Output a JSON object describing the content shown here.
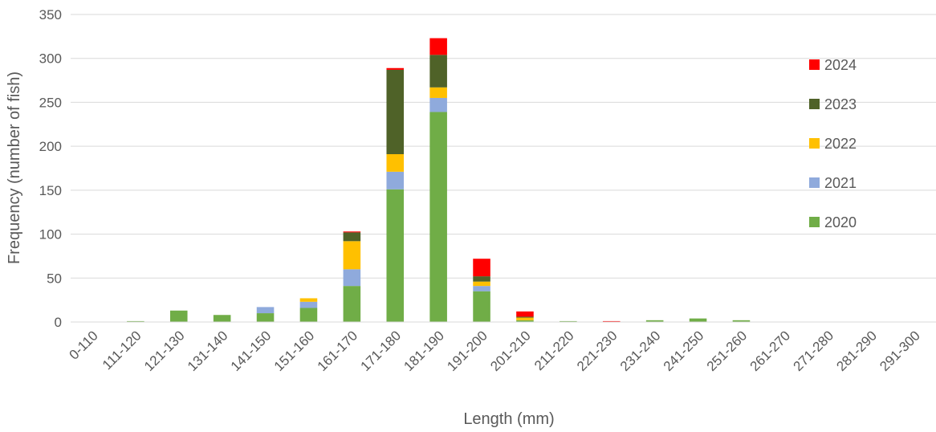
{
  "chart_data": {
    "type": "bar",
    "stacked": true,
    "title": "",
    "xlabel": "Length (mm)",
    "ylabel": "Frequency (number of fish)",
    "ylim": [
      0,
      350
    ],
    "yticks": [
      0,
      50,
      100,
      150,
      200,
      250,
      300,
      350
    ],
    "grid": true,
    "legend_position": "right",
    "categories": [
      "0-110",
      "111-120",
      "121-130",
      "131-140",
      "141-150",
      "151-160",
      "161-170",
      "171-180",
      "181-190",
      "191-200",
      "201-210",
      "211-220",
      "221-230",
      "231-240",
      "241-250",
      "251-260",
      "261-270",
      "271-280",
      "281-290",
      "291-300"
    ],
    "series": [
      {
        "name": "2020",
        "color": "#70ad47",
        "values": [
          0,
          1,
          13,
          8,
          10,
          16,
          41,
          151,
          239,
          35,
          2,
          1,
          0,
          2,
          4,
          2,
          0,
          0,
          0,
          0
        ]
      },
      {
        "name": "2021",
        "color": "#8faadc",
        "values": [
          0,
          0,
          0,
          0,
          7,
          7,
          19,
          20,
          16,
          6,
          0,
          0,
          0,
          0,
          0,
          0,
          0,
          0,
          0,
          0
        ]
      },
      {
        "name": "2022",
        "color": "#ffc000",
        "values": [
          0,
          0,
          0,
          0,
          0,
          4,
          32,
          20,
          12,
          5,
          3,
          0,
          0,
          0,
          0,
          0,
          0,
          0,
          0,
          0
        ]
      },
      {
        "name": "2023",
        "color": "#4f6228",
        "values": [
          0,
          0,
          0,
          0,
          0,
          0,
          10,
          96,
          37,
          6,
          1,
          0,
          0,
          0,
          0,
          0,
          0,
          0,
          0,
          0
        ]
      },
      {
        "name": "2024",
        "color": "#ff0000",
        "values": [
          0,
          0,
          0,
          0,
          0,
          0,
          1,
          2,
          19,
          20,
          6,
          0,
          1,
          0,
          0,
          0,
          0,
          0,
          0,
          0
        ]
      }
    ]
  }
}
